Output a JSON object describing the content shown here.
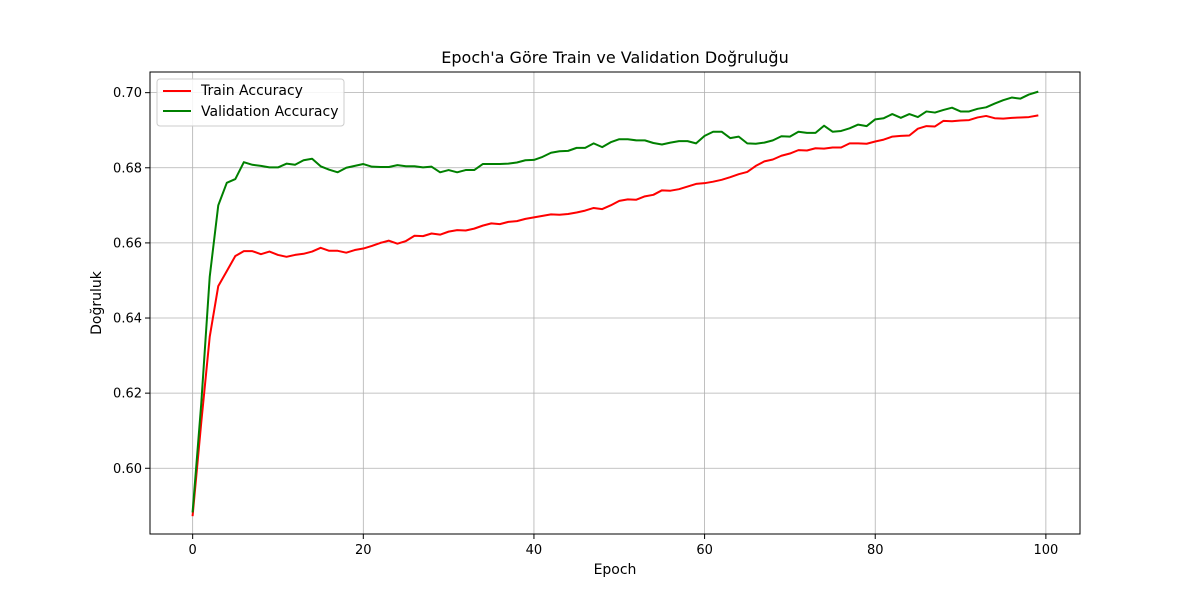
{
  "chart_data": {
    "type": "line",
    "title": "Epoch'a Göre Train ve Validation Doğruluğu",
    "xlabel": "Epoch",
    "ylabel": "Doğruluk",
    "xlim": [
      -5.0,
      104.0
    ],
    "ylim": [
      0.5825,
      0.7055
    ],
    "xticks": [
      0,
      20,
      40,
      60,
      80,
      100
    ],
    "yticks": [
      0.6,
      0.62,
      0.64,
      0.66,
      0.68,
      0.7
    ],
    "xtick_labels": [
      "0",
      "20",
      "40",
      "60",
      "80",
      "100"
    ],
    "ytick_labels": [
      "0.60",
      "0.62",
      "0.64",
      "0.66",
      "0.68",
      "0.70"
    ],
    "grid": true,
    "legend_position": "upper-left",
    "x": [
      0,
      1,
      2,
      3,
      4,
      5,
      6,
      7,
      8,
      9,
      10,
      11,
      12,
      13,
      14,
      15,
      16,
      17,
      18,
      19,
      20,
      21,
      22,
      23,
      24,
      25,
      26,
      27,
      28,
      29,
      30,
      31,
      32,
      33,
      34,
      35,
      36,
      37,
      38,
      39,
      40,
      41,
      42,
      43,
      44,
      45,
      46,
      47,
      48,
      49,
      50,
      51,
      52,
      53,
      54,
      55,
      56,
      57,
      58,
      59,
      60,
      61,
      62,
      63,
      64,
      65,
      66,
      67,
      68,
      69,
      70,
      71,
      72,
      73,
      74,
      75,
      76,
      77,
      78,
      79,
      80,
      81,
      82,
      83,
      84,
      85,
      86,
      87,
      88,
      89,
      90,
      91,
      92,
      93,
      94,
      95,
      96,
      97,
      98,
      99
    ],
    "series": [
      {
        "name": "Train Accuracy",
        "color": "#ff0000",
        "values": [
          0.5875,
          0.612,
          0.635,
          0.6485,
          0.6525,
          0.6565,
          0.6578,
          0.6578,
          0.657,
          0.6577,
          0.6568,
          0.6563,
          0.6568,
          0.6571,
          0.6577,
          0.6587,
          0.6579,
          0.6579,
          0.6574,
          0.6581,
          0.6585,
          0.6592,
          0.66,
          0.6606,
          0.6598,
          0.6605,
          0.6619,
          0.6618,
          0.6625,
          0.6622,
          0.663,
          0.6634,
          0.6633,
          0.6638,
          0.6646,
          0.6652,
          0.665,
          0.6656,
          0.6658,
          0.6664,
          0.6668,
          0.6672,
          0.6676,
          0.6675,
          0.6677,
          0.6681,
          0.6686,
          0.6693,
          0.669,
          0.67,
          0.6712,
          0.6716,
          0.6715,
          0.6724,
          0.6728,
          0.674,
          0.6739,
          0.6743,
          0.675,
          0.6757,
          0.6759,
          0.6763,
          0.6768,
          0.6775,
          0.6783,
          0.6789,
          0.6805,
          0.6817,
          0.6822,
          0.6832,
          0.6838,
          0.6847,
          0.6846,
          0.6852,
          0.6851,
          0.6854,
          0.6854,
          0.6865,
          0.6865,
          0.6864,
          0.687,
          0.6875,
          0.6883,
          0.6885,
          0.6886,
          0.6904,
          0.6911,
          0.691,
          0.6925,
          0.6924,
          0.6926,
          0.6927,
          0.6934,
          0.6938,
          0.6932,
          0.6931,
          0.6933,
          0.6934,
          0.6935,
          0.6939
        ]
      },
      {
        "name": "Validation Accuracy",
        "color": "#008000",
        "values": [
          0.5885,
          0.617,
          0.651,
          0.67,
          0.676,
          0.677,
          0.6815,
          0.6808,
          0.6805,
          0.6801,
          0.6801,
          0.6811,
          0.6808,
          0.682,
          0.6824,
          0.6804,
          0.6795,
          0.6788,
          0.68,
          0.6805,
          0.681,
          0.6803,
          0.6802,
          0.6802,
          0.6807,
          0.6804,
          0.6804,
          0.6801,
          0.6803,
          0.6788,
          0.6794,
          0.6788,
          0.6794,
          0.6794,
          0.681,
          0.681,
          0.681,
          0.6811,
          0.6814,
          0.682,
          0.6821,
          0.6829,
          0.684,
          0.6844,
          0.6845,
          0.6853,
          0.6853,
          0.6865,
          0.6855,
          0.6868,
          0.6876,
          0.6876,
          0.6873,
          0.6873,
          0.6866,
          0.6862,
          0.6867,
          0.6871,
          0.6871,
          0.6865,
          0.6885,
          0.6896,
          0.6896,
          0.6879,
          0.6883,
          0.6865,
          0.6864,
          0.6867,
          0.6873,
          0.6884,
          0.6883,
          0.6896,
          0.6893,
          0.6893,
          0.6912,
          0.6896,
          0.6898,
          0.6905,
          0.6915,
          0.6911,
          0.6929,
          0.6932,
          0.6943,
          0.6933,
          0.6943,
          0.6935,
          0.695,
          0.6947,
          0.6954,
          0.696,
          0.695,
          0.695,
          0.6957,
          0.6961,
          0.6971,
          0.698,
          0.6987,
          0.6984,
          0.6995,
          0.7002
        ]
      }
    ]
  }
}
